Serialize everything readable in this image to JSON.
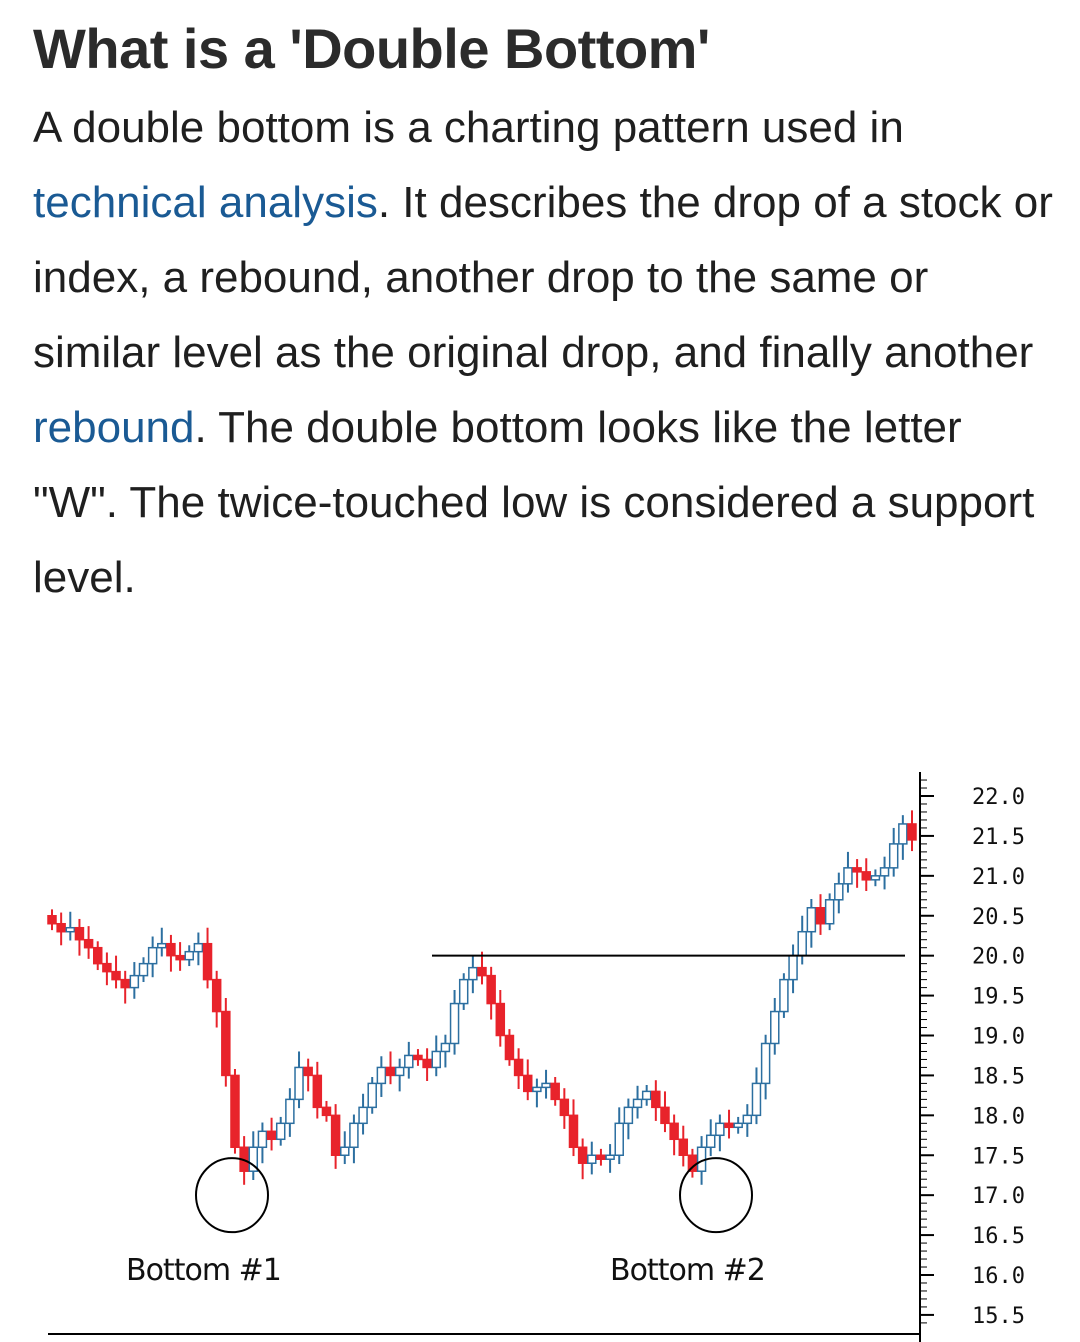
{
  "article": {
    "title": "What is a 'Double Bottom'",
    "p1": "A double bottom is a charting pattern used in ",
    "link1": "technical analysis",
    "p2": ". It describes the drop of a stock or index, a rebound, another drop to the same or similar level as the original drop, and finally another ",
    "link2": "rebound",
    "p3": ". The double bottom looks like the letter \"W\". The twice-touched low is considered a support level."
  },
  "chart_data": {
    "type": "candlestick",
    "y_ticks": [
      "22.0",
      "21.5",
      "21.0",
      "20.5",
      "20.0",
      "19.5",
      "19.0",
      "18.5",
      "18.0",
      "17.5",
      "17.0",
      "16.5",
      "16.0",
      "15.5"
    ],
    "ylim": [
      15.3,
      22.3
    ],
    "resistance_level": 20.0,
    "annotations": [
      {
        "label": "Bottom #1",
        "price": 17.0
      },
      {
        "label": "Bottom #2",
        "price": 17.0
      }
    ],
    "colors": {
      "up": "#2c6fa0",
      "down": "#e8232b",
      "frame": "#000000"
    },
    "closes": [
      20.4,
      20.3,
      20.35,
      20.2,
      20.1,
      19.9,
      19.8,
      19.7,
      19.6,
      19.75,
      19.9,
      20.1,
      20.15,
      20.0,
      19.95,
      20.05,
      20.15,
      19.7,
      19.3,
      18.5,
      17.6,
      17.3,
      17.6,
      17.8,
      17.7,
      17.9,
      18.2,
      18.6,
      18.5,
      18.1,
      18.0,
      17.5,
      17.6,
      17.9,
      18.1,
      18.4,
      18.6,
      18.5,
      18.6,
      18.75,
      18.7,
      18.6,
      18.8,
      18.9,
      19.4,
      19.7,
      19.85,
      19.75,
      19.4,
      19.0,
      18.7,
      18.5,
      18.3,
      18.35,
      18.4,
      18.2,
      18.0,
      17.6,
      17.4,
      17.5,
      17.45,
      17.5,
      17.9,
      18.1,
      18.2,
      18.3,
      18.1,
      17.9,
      17.7,
      17.5,
      17.3,
      17.6,
      17.75,
      17.9,
      17.85,
      17.9,
      18.0,
      18.4,
      18.9,
      19.3,
      19.7,
      20.0,
      20.3,
      20.6,
      20.4,
      20.7,
      20.9,
      21.1,
      21.05,
      20.95,
      21.0,
      21.1,
      21.4,
      21.65,
      21.45
    ]
  }
}
